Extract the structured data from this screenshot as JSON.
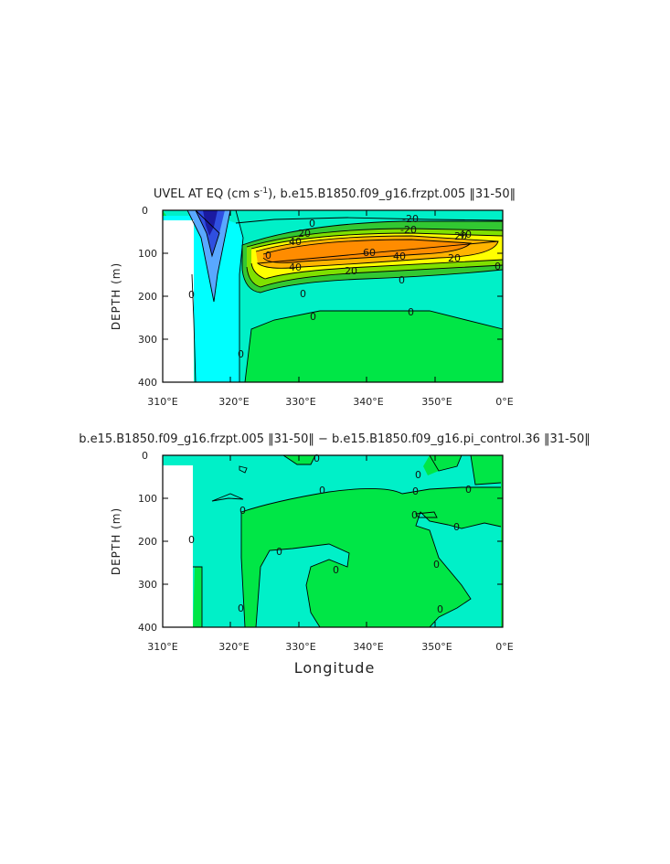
{
  "chart_data": [
    {
      "type": "contour",
      "title_main": "UVEL AT EQ (cm s",
      "title_sup": "-1",
      "title_rest": "), b.e15.B1850.f09_g16.frzpt.005 ‖31-50‖",
      "ylabel": "DEPTH (m)",
      "xlabel": "",
      "x_ticks": [
        "310°E",
        "320°E",
        "330°E",
        "340°E",
        "350°E",
        "0°E"
      ],
      "y_ticks": [
        "0",
        "100",
        "200",
        "300",
        "400"
      ],
      "xlim": [
        310,
        360
      ],
      "ylim": [
        0,
        400
      ],
      "contour_labels": [
        "-20",
        "-20",
        "0",
        "20",
        "40",
        "60",
        "40",
        "20",
        "40",
        "20",
        "40",
        "20",
        "0",
        "0",
        "0",
        "0",
        "0",
        "0",
        "0",
        "0"
      ],
      "colors": {
        "neg_strong": "#1a1aa0",
        "neg": "#2f4fe0",
        "neg_weak": "#59a8ff",
        "zero_neg": "#00ffff",
        "zero_pos": "#00f0c8",
        "pos_weak": "#00e646",
        "pos1": "#32c832",
        "pos2": "#7fe000",
        "pos3": "#ffff00",
        "pos4": "#ffb400",
        "pos5": "#ff8c00"
      }
    },
    {
      "type": "contour",
      "title": "b.e15.B1850.f09_g16.frzpt.005 ‖31-50‖ − b.e15.B1850.f09_g16.pi_control.36 ‖31-50‖",
      "ylabel": "DEPTH (m)",
      "xlabel": "Longitude",
      "x_ticks": [
        "310°E",
        "320°E",
        "330°E",
        "340°E",
        "350°E",
        "0°E"
      ],
      "y_ticks": [
        "0",
        "100",
        "200",
        "300",
        "400"
      ],
      "xlim": [
        310,
        360
      ],
      "ylim": [
        0,
        400
      ],
      "contour_labels": [
        "0",
        "0",
        "0",
        "0",
        "0",
        "0",
        "0",
        "0",
        "0",
        "0",
        "0",
        "0",
        "0",
        "0"
      ],
      "colors": {
        "neg": "#00f0c8",
        "pos": "#00e646"
      }
    }
  ]
}
